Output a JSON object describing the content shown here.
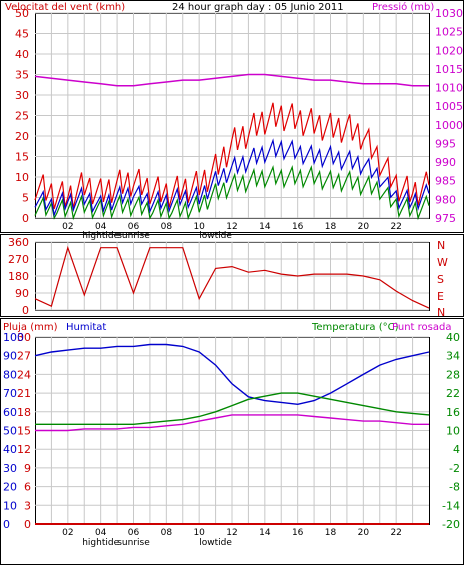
{
  "header": {
    "wind_label": "Velocitat del vent (kmh)",
    "title": "24 hour graph day : 05 Junio 2011",
    "pressure_label": "Pressió (mb)"
  },
  "middle": {
    "dir_labels": [
      "N",
      "W",
      "S",
      "E",
      "N"
    ]
  },
  "bottom": {
    "rain_label": "Pluja (mm)",
    "humidity_label": "Humitat",
    "temp_label": "Temperatura (°C)",
    "dew_label": "Punt rosada"
  },
  "x_axis": {
    "hour_labels": [
      "02",
      "04",
      "06",
      "08",
      "10",
      "12",
      "14",
      "16",
      "18",
      "20",
      "22"
    ],
    "event_labels": [
      "hightide",
      "sunrise",
      "lowtide"
    ]
  },
  "colors": {
    "wind_gust": "#e00000",
    "wind_avg": "#0000cc",
    "wind_green": "#008800",
    "pressure": "#cc00cc",
    "direction": "#cc0000",
    "humidity": "#0000cc",
    "temperature": "#008800",
    "dewpoint": "#cc00cc",
    "rain": "#cc0000",
    "grid": "#c8c8c8",
    "frame": "#000000"
  },
  "chart_data": [
    {
      "type": "line",
      "title": "24 hour graph day : 05 Junio 2011",
      "ylabel": "Velocitat del vent (kmh)",
      "ylabel_right": "Pressió (mb)",
      "ylim": [
        0,
        50
      ],
      "ylim_right": [
        975,
        1030
      ],
      "yticks": [
        0,
        5,
        10,
        15,
        20,
        25,
        30,
        35,
        40,
        45,
        50
      ],
      "yticks_right": [
        975,
        980,
        985,
        990,
        995,
        1000,
        1005,
        1010,
        1015,
        1020,
        1025,
        1030
      ],
      "x": [
        0,
        1,
        2,
        3,
        4,
        5,
        6,
        7,
        8,
        9,
        10,
        11,
        12,
        13,
        14,
        15,
        16,
        17,
        18,
        19,
        20,
        21,
        22,
        23,
        24
      ],
      "series": [
        {
          "name": "wind_gust",
          "axis": "left",
          "values": [
            8,
            6,
            5,
            8,
            6,
            8,
            9,
            7,
            6,
            7,
            8,
            12,
            18,
            21,
            24,
            25,
            24,
            23,
            22,
            22,
            20,
            14,
            8,
            6,
            8
          ]
        },
        {
          "name": "wind_avg",
          "axis": "left",
          "values": [
            5,
            3,
            4,
            5,
            3,
            5,
            6,
            4,
            4,
            5,
            5,
            9,
            12,
            14,
            16,
            17,
            16,
            15,
            15,
            14,
            13,
            10,
            5,
            4,
            6
          ]
        },
        {
          "name": "wind_green",
          "axis": "left",
          "values": [
            3,
            2,
            2,
            3,
            2,
            3,
            3,
            2,
            2,
            2,
            3,
            6,
            8,
            9,
            10,
            10,
            10,
            10,
            9,
            9,
            8,
            7,
            3,
            2,
            3
          ]
        },
        {
          "name": "pressure",
          "axis": "right",
          "values": [
            1013,
            1012.5,
            1012,
            1011.5,
            1011,
            1010.5,
            1010.5,
            1011,
            1011.5,
            1012,
            1012,
            1012.5,
            1013,
            1013.5,
            1013.5,
            1013,
            1012.5,
            1012,
            1012,
            1011.5,
            1011,
            1011,
            1011,
            1010.5,
            1010.5
          ]
        }
      ]
    },
    {
      "type": "line",
      "ylim": [
        0,
        360
      ],
      "yticks": [
        0,
        90,
        180,
        270,
        360
      ],
      "x": [
        0,
        1,
        2,
        3,
        4,
        5,
        6,
        7,
        8,
        9,
        10,
        11,
        12,
        13,
        14,
        15,
        16,
        17,
        18,
        19,
        20,
        21,
        22,
        23,
        24
      ],
      "series": [
        {
          "name": "wind_direction",
          "values": [
            60,
            20,
            330,
            80,
            330,
            330,
            90,
            330,
            330,
            330,
            60,
            220,
            230,
            200,
            210,
            190,
            180,
            190,
            190,
            190,
            180,
            160,
            100,
            50,
            10
          ]
        }
      ]
    },
    {
      "type": "line",
      "ylabel": "Pluja (mm)",
      "ylabel_right": "Temperatura (°C)",
      "ylim": [
        0,
        30
      ],
      "ylim_humidity": [
        0,
        100
      ],
      "ylim_right": [
        -20,
        40
      ],
      "yticks": [
        0,
        3,
        6,
        9,
        12,
        15,
        18,
        21,
        24,
        27,
        30
      ],
      "yticks_humidity": [
        0,
        10,
        20,
        30,
        40,
        50,
        60,
        70,
        80,
        90,
        100
      ],
      "yticks_right": [
        -20,
        -14,
        -8,
        -2,
        4,
        10,
        16,
        22,
        28,
        34,
        40
      ],
      "x": [
        0,
        1,
        2,
        3,
        4,
        5,
        6,
        7,
        8,
        9,
        10,
        11,
        12,
        13,
        14,
        15,
        16,
        17,
        18,
        19,
        20,
        21,
        22,
        23,
        24
      ],
      "series": [
        {
          "name": "Humitat",
          "axis": "humidity",
          "values": [
            90,
            92,
            93,
            94,
            94,
            95,
            95,
            96,
            96,
            95,
            92,
            85,
            75,
            68,
            66,
            65,
            64,
            66,
            70,
            75,
            80,
            85,
            88,
            90,
            92
          ]
        },
        {
          "name": "Temperatura",
          "axis": "right",
          "values": [
            12,
            12,
            12,
            12,
            12,
            12,
            12,
            12.5,
            13,
            13.5,
            14.5,
            16,
            18,
            20,
            21,
            22,
            22,
            21,
            20,
            19,
            18,
            17,
            16,
            15.5,
            15
          ]
        },
        {
          "name": "Punt rosada",
          "axis": "right",
          "values": [
            10,
            10,
            10,
            10.5,
            10.5,
            10.5,
            11,
            11,
            11.5,
            12,
            13,
            14,
            15,
            15,
            15,
            15,
            15,
            14.5,
            14,
            13.5,
            13,
            13,
            12.5,
            12,
            12
          ]
        },
        {
          "name": "Pluja",
          "axis": "left",
          "values": [
            0,
            0,
            0,
            0,
            0,
            0,
            0,
            0,
            0,
            0,
            0,
            0,
            0,
            0,
            0,
            0,
            0,
            0,
            0,
            0,
            0,
            0,
            0,
            0,
            0
          ]
        }
      ]
    }
  ]
}
